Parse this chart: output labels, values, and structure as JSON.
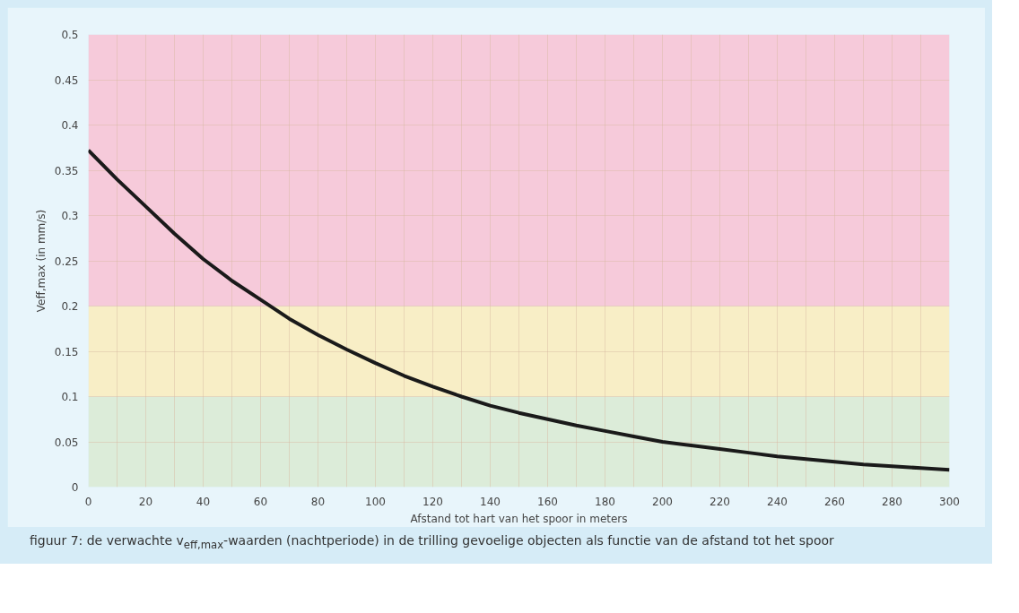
{
  "chart_data": {
    "type": "line",
    "xlabel": "Afstand tot hart van het spoor in meters",
    "ylabel": "Veff,max (in mm/s)",
    "annotations": [
      "figuur 7: de verwachte v$_{eff,max}$-waarden (nachtperiode) in de trilling gevoelige objecten als functie van de afstand tot het spoor"
    ],
    "x": [
      0,
      10,
      20,
      30,
      40,
      50,
      60,
      70,
      80,
      90,
      100,
      110,
      120,
      130,
      140,
      150,
      160,
      170,
      180,
      190,
      200,
      210,
      220,
      230,
      240,
      250,
      260,
      270,
      280,
      290,
      300
    ],
    "series": [
      {
        "color": "#1a1a1a",
        "values": [
          0.372,
          0.34,
          0.31,
          0.28,
          0.252,
          0.228,
          0.207,
          0.186,
          0.168,
          0.152,
          0.137,
          0.123,
          0.111,
          0.1,
          0.09,
          0.082,
          0.075,
          0.068,
          0.062,
          0.056,
          0.05,
          0.046,
          0.042,
          0.038,
          0.034,
          0.031,
          0.028,
          0.025,
          0.023,
          0.021,
          0.019
        ]
      }
    ],
    "xlim": [
      0,
      300
    ],
    "ylim": [
      0,
      0.5
    ],
    "xticks": [
      0,
      {
        "value": 10,
        "label": null
      },
      20,
      {
        "value": 30,
        "label": null
      },
      40,
      {
        "value": 50,
        "label": null
      },
      60,
      {
        "value": 70,
        "label": null
      },
      80,
      {
        "value": 90,
        "label": null
      },
      100,
      {
        "value": 110,
        "label": null
      },
      120,
      {
        "value": 130,
        "label": null
      },
      140,
      {
        "value": 150,
        "label": null
      },
      160,
      {
        "value": 170,
        "label": null
      },
      180,
      {
        "value": 190,
        "label": null
      },
      200,
      {
        "value": 210,
        "label": null
      },
      220,
      {
        "value": 230,
        "label": null
      },
      240,
      {
        "value": 250,
        "label": null
      },
      260,
      {
        "value": 270,
        "label": null
      },
      280,
      {
        "value": 290,
        "label": null
      },
      300
    ],
    "yticks": [
      0,
      0.05,
      0.1,
      0.15,
      0.2,
      0.25,
      0.3,
      0.35,
      0.4,
      0.45,
      0.5
    ],
    "bands": [
      {
        "axis": "y",
        "from": 0,
        "to": 0.1,
        "color": "#dcecd9"
      },
      {
        "axis": "y",
        "from": 0.1,
        "to": 0.2,
        "color": "#f8eec6"
      },
      {
        "axis": "y",
        "from": 0.2,
        "to": 0.5,
        "color": "#f6cada"
      }
    ],
    "grid": true,
    "line_style": "solid",
    "marker": "none"
  }
}
